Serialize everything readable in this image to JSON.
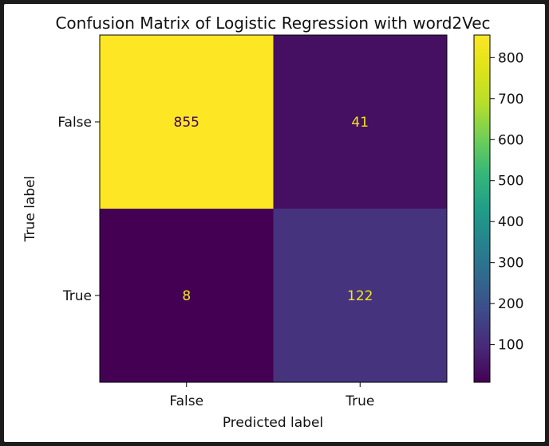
{
  "chart_data": {
    "type": "heatmap",
    "title": "Confusion Matrix of Logistic Regression with word2Vec",
    "xlabel": "Predicted label",
    "ylabel": "True label",
    "x_categories": [
      "False",
      "True"
    ],
    "y_categories": [
      "False",
      "True"
    ],
    "matrix": [
      [
        855,
        41
      ],
      [
        8,
        122
      ]
    ],
    "colormap": "viridis",
    "colorbar": {
      "vmin": 8,
      "vmax": 855,
      "ticks": [
        100,
        200,
        300,
        400,
        500,
        600,
        700,
        800
      ]
    },
    "colors": {
      "text_on_dark": "#f1e51d",
      "text_on_light": "#440154"
    }
  }
}
